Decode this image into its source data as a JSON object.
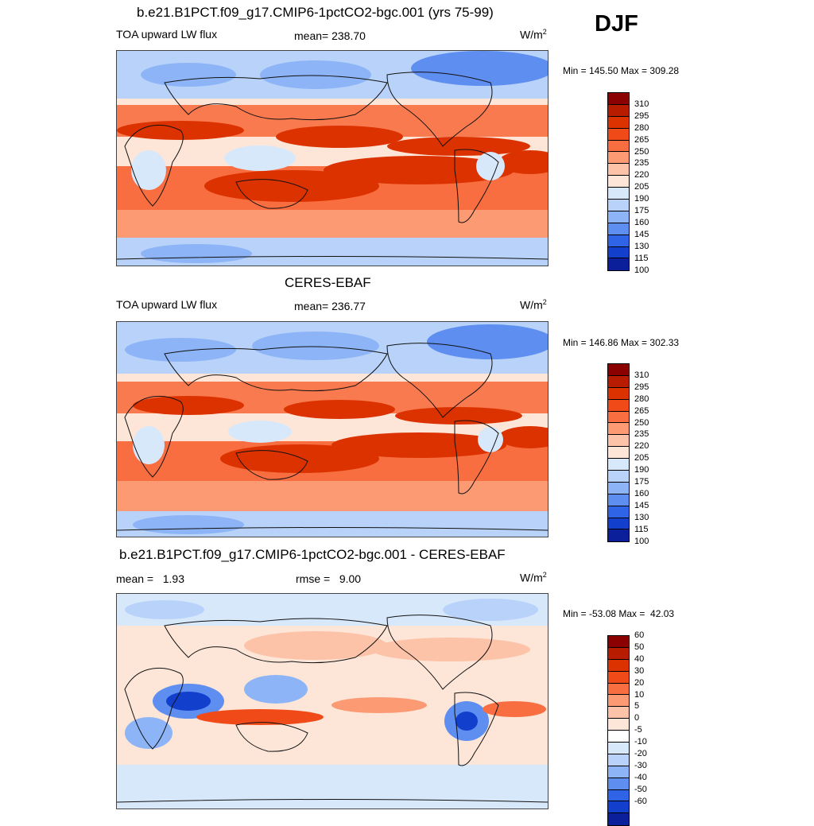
{
  "season": "DJF",
  "panels": [
    {
      "id": "model",
      "title": "b.e21.B1PCT.f09_g17.CMIP6-1pctCO2-bgc.001 (yrs 75-99)",
      "left_label": "TOA upward LW flux",
      "center_label": "mean= 238.70",
      "units_base": "W/m",
      "units_exp": "2",
      "minmax": "Min = 145.50 Max = 309.28"
    },
    {
      "id": "obs",
      "title": "CERES-EBAF",
      "left_label": "TOA upward LW flux",
      "center_label": "mean= 236.77",
      "units_base": "W/m",
      "units_exp": "2",
      "minmax": "Min = 146.86 Max = 302.33"
    },
    {
      "id": "diff",
      "title": "b.e21.B1PCT.f09_g17.CMIP6-1pctCO2-bgc.001 - CERES-EBAF",
      "left_label": "mean =   1.93",
      "center_label": "rmse =   9.00",
      "units_base": "W/m",
      "units_exp": "2",
      "minmax": "Min = -53.08 Max =  42.03"
    }
  ],
  "chart_data": [
    {
      "type": "heatmap",
      "title": "b.e21.B1PCT.f09_g17.CMIP6-1pctCO2-bgc.001 (yrs 75-99)",
      "variable": "TOA upward LW flux",
      "mean": 238.7,
      "min": 145.5,
      "max": 309.28,
      "units": "W/m2",
      "colorbar_levels": [
        310,
        295,
        280,
        265,
        250,
        235,
        220,
        205,
        190,
        175,
        160,
        145,
        130,
        115,
        100
      ],
      "colorbar_colors": [
        "#8b0000",
        "#b81c00",
        "#dc3200",
        "#f04a18",
        "#f86e40",
        "#fc9a74",
        "#fdc3a8",
        "#fde6d8",
        "#d8e8fb",
        "#b8d2fa",
        "#8cb4f6",
        "#5e8ef0",
        "#2f64e6",
        "#1240cc",
        "#0a1f99"
      ]
    },
    {
      "type": "heatmap",
      "title": "CERES-EBAF",
      "variable": "TOA upward LW flux",
      "mean": 236.77,
      "min": 146.86,
      "max": 302.33,
      "units": "W/m2",
      "colorbar_levels": [
        310,
        295,
        280,
        265,
        250,
        235,
        220,
        205,
        190,
        175,
        160,
        145,
        130,
        115,
        100
      ],
      "colorbar_colors": [
        "#8b0000",
        "#b81c00",
        "#dc3200",
        "#f04a18",
        "#f86e40",
        "#fc9a74",
        "#fdc3a8",
        "#fde6d8",
        "#d8e8fb",
        "#b8d2fa",
        "#8cb4f6",
        "#5e8ef0",
        "#2f64e6",
        "#1240cc",
        "#0a1f99"
      ]
    },
    {
      "type": "heatmap",
      "title": "b.e21.B1PCT.f09_g17.CMIP6-1pctCO2-bgc.001 - CERES-EBAF",
      "mean": 1.93,
      "rmse": 9.0,
      "min": -53.08,
      "max": 42.03,
      "units": "W/m2",
      "colorbar_levels": [
        60,
        50,
        40,
        30,
        20,
        10,
        5,
        0,
        -5,
        -10,
        -20,
        -30,
        -40,
        -50,
        -60
      ],
      "colorbar_colors": [
        "#8b0000",
        "#b81c00",
        "#dc3200",
        "#f04a18",
        "#f86e40",
        "#fc9a74",
        "#fdc3a8",
        "#fde6d8",
        "#ffffff",
        "#d8e8fb",
        "#b8d2fa",
        "#8cb4f6",
        "#5e8ef0",
        "#2f64e6",
        "#1240cc",
        "#0a1f99"
      ]
    }
  ]
}
